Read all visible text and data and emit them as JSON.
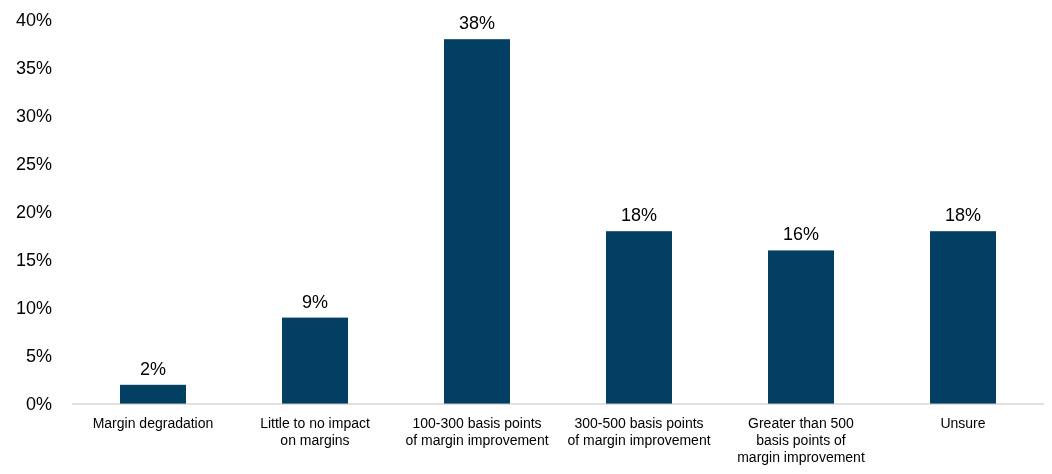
{
  "chart_data": {
    "type": "bar",
    "categories": [
      "Margin degradation",
      "Little to no impact on margins",
      "100-300 basis points of margin improvement",
      "300-500 basis points of margin improvement",
      "Greater than 500 basis points of margin improvement",
      "Unsure"
    ],
    "values": [
      2,
      9,
      38,
      18,
      16,
      18
    ],
    "value_labels": [
      "2%",
      "9%",
      "38%",
      "18%",
      "16%",
      "18%"
    ],
    "color": "#023f62",
    "ylim": [
      0,
      40
    ],
    "yticks": [
      {
        "value": 0,
        "label": "0%"
      },
      {
        "value": 5,
        "label": "5%"
      },
      {
        "value": 10,
        "label": "10%"
      },
      {
        "value": 15,
        "label": "15%"
      },
      {
        "value": 20,
        "label": "20%"
      },
      {
        "value": 25,
        "label": "25%"
      },
      {
        "value": 30,
        "label": "30%"
      },
      {
        "value": 35,
        "label": "35%"
      },
      {
        "value": 40,
        "label": "40%"
      }
    ],
    "grid": false
  }
}
